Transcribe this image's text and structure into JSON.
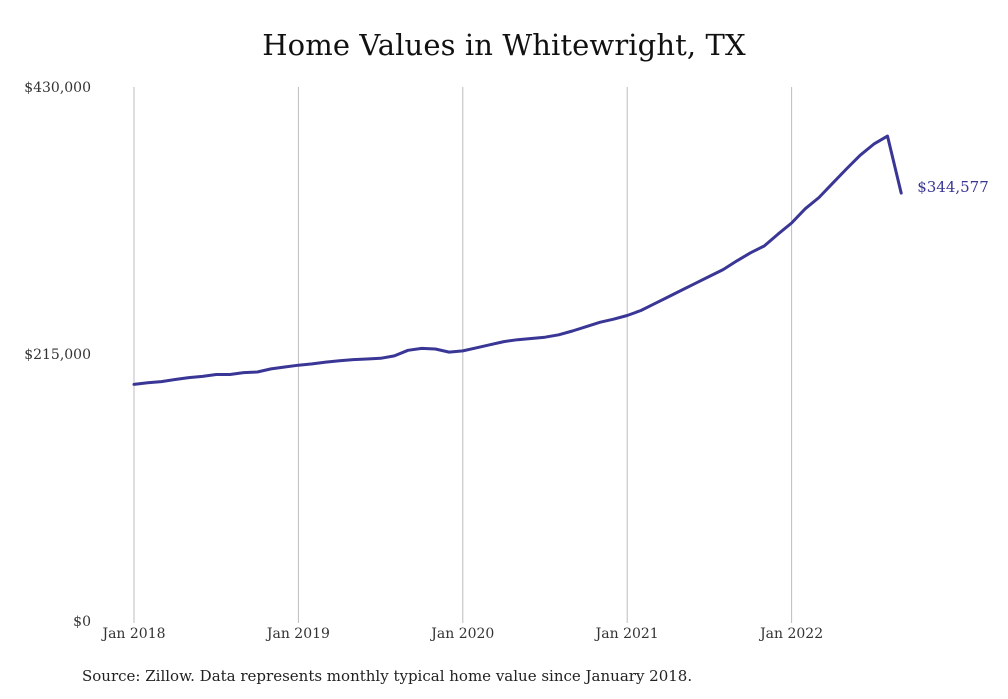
{
  "chart_data": {
    "type": "line",
    "title": "Home Values in Whitewright, TX",
    "source": "Source: Zillow. Data represents monthly typical home value since January 2018.",
    "xlabel": "",
    "ylabel": "",
    "ylim": [
      0,
      430000
    ],
    "yticks": [
      {
        "value": 0,
        "label": "$0"
      },
      {
        "value": 215000,
        "label": "$215,000"
      },
      {
        "value": 430000,
        "label": "$430,000"
      }
    ],
    "xticks": [
      {
        "index": 0,
        "label": "Jan 2018"
      },
      {
        "index": 12,
        "label": "Jan 2019"
      },
      {
        "index": 24,
        "label": "Jan 2020"
      },
      {
        "index": 36,
        "label": "Jan 2021"
      },
      {
        "index": 48,
        "label": "Jan 2022"
      }
    ],
    "grid": "vertical",
    "line_color": "#3a3696",
    "end_label": "$344,577",
    "series": [
      {
        "values": [
          190500,
          191800,
          192800,
          194500,
          196000,
          197000,
          198500,
          198500,
          200000,
          200500,
          203000,
          204500,
          206000,
          207000,
          208500,
          209500,
          210500,
          211000,
          211500,
          213500,
          218000,
          219500,
          219000,
          216500,
          217500,
          220000,
          222500,
          225000,
          226500,
          227500,
          228500,
          230500,
          233500,
          237000,
          240500,
          243000,
          246000,
          250000,
          255500,
          261000,
          266500,
          272000,
          277500,
          283000,
          290000,
          296500,
          302000,
          311500,
          320500,
          332000,
          341000,
          352500,
          364000,
          375000,
          384000,
          390500,
          344577
        ]
      }
    ]
  }
}
